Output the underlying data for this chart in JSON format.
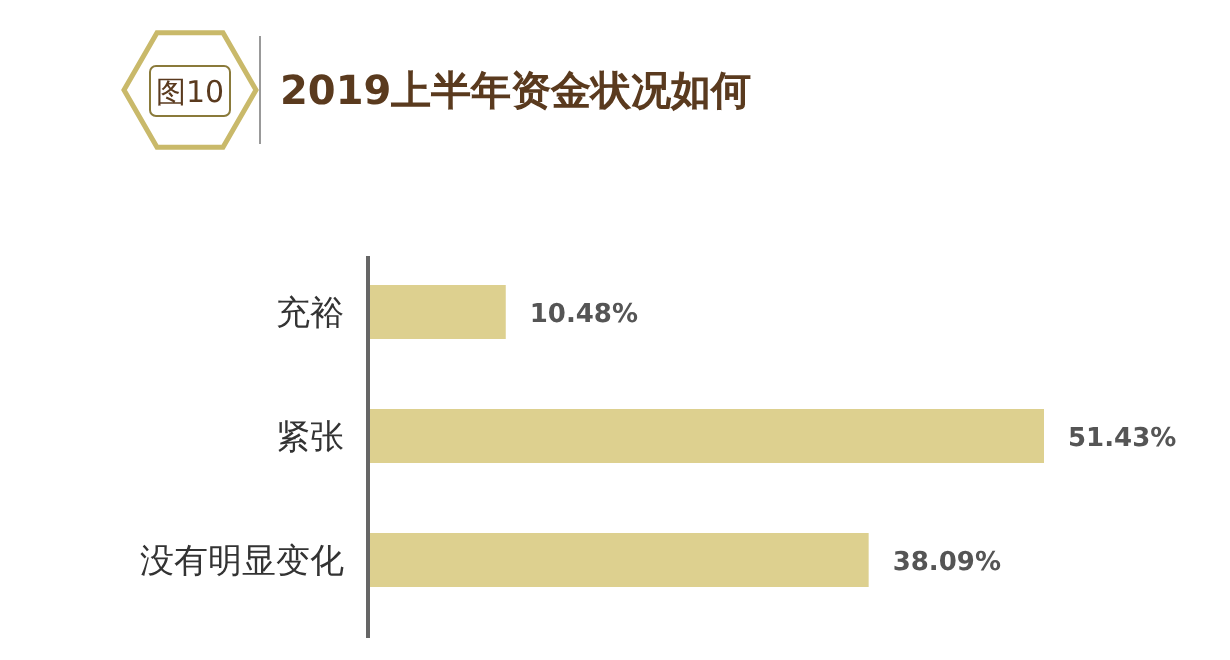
{
  "chart_data": {
    "type": "bar",
    "orientation": "horizontal",
    "title": "2019上半年资金状况如何",
    "annotations": [
      "图10"
    ],
    "categories": [
      "充裕",
      "紧张",
      "没有明显变化"
    ],
    "values": [
      10.48,
      51.43,
      38.09
    ],
    "value_labels": [
      "10.48%",
      "51.43%",
      "38.09%"
    ],
    "color": "#ddd08f"
  }
}
